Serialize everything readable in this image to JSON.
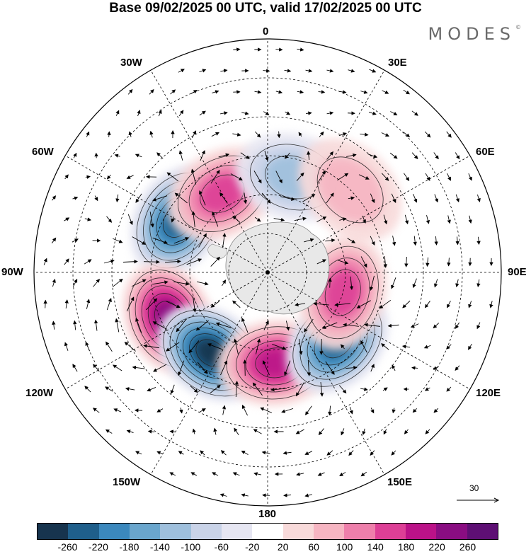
{
  "title": "Base 09/02/2025 00 UTC, valid 17/02/2025 00 UTC",
  "brand": "MODES",
  "brand_mark": "©",
  "longitude_labels": {
    "lon_0": "0",
    "lon_30e": "30E",
    "lon_60e": "60E",
    "lon_90e": "90E",
    "lon_120e": "120E",
    "lon_150e": "150E",
    "lon_180": "180",
    "lon_150w": "150W",
    "lon_120w": "120W",
    "lon_90w": "90W",
    "lon_60w": "60W",
    "lon_30w": "30W"
  },
  "reference_vector": {
    "value": "30"
  },
  "colorbar": {
    "colors": [
      "#17344e",
      "#1f5f8b",
      "#3b88bd",
      "#6aa6cd",
      "#9fc0dd",
      "#c9d3e8",
      "#e6e6f2",
      "#ffffff",
      "#f8dada",
      "#f6b5c2",
      "#ee7fab",
      "#dd3f96",
      "#bb1288",
      "#8a0d82",
      "#5e0f74"
    ],
    "ticks": [
      "-260",
      "-220",
      "-180",
      "-140",
      "-100",
      "-60",
      "-20",
      "20",
      "60",
      "100",
      "140",
      "180",
      "220",
      "260"
    ]
  },
  "anomaly_centers": [
    {
      "lon_lat": [
        -60,
        -50
      ],
      "value": -240
    },
    {
      "lon_lat": [
        -115,
        -48
      ],
      "value": 250
    },
    {
      "lon_lat": [
        -145,
        -52
      ],
      "value": -260
    },
    {
      "lon_lat": [
        175,
        -55
      ],
      "value": 210
    },
    {
      "lon_lat": [
        135,
        -52
      ],
      "value": -220
    },
    {
      "lon_lat": [
        105,
        -60
      ],
      "value": 160
    },
    {
      "lon_lat": [
        -30,
        -55
      ],
      "value": 150
    },
    {
      "lon_lat": [
        15,
        -52
      ],
      "value": -100
    },
    {
      "lon_lat": [
        45,
        -45
      ],
      "value": 60
    }
  ]
}
